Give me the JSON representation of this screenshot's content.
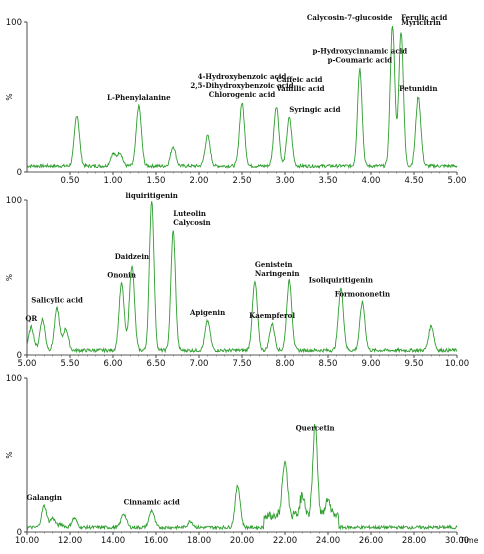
{
  "chart_data": [
    {
      "type": "line",
      "xlim": [
        0.0,
        5.0
      ],
      "ylim": [
        0,
        100
      ],
      "xticks": [
        "0.50",
        "1.00",
        "1.50",
        "2.00",
        "2.50",
        "3.00",
        "3.50",
        "4.00",
        "4.50",
        "5.00"
      ],
      "yticks": [
        "0",
        "100"
      ],
      "ylabel": "%",
      "xlabel": "",
      "line_color": "#2e9e2e",
      "baseline": 4,
      "peaks": [
        {
          "x": 0.58,
          "y": 38
        },
        {
          "x": 1.0,
          "y": 12
        },
        {
          "x": 1.08,
          "y": 13
        },
        {
          "x": 1.3,
          "y": 44
        },
        {
          "x": 1.7,
          "y": 17
        },
        {
          "x": 2.1,
          "y": 24
        },
        {
          "x": 2.5,
          "y": 46
        },
        {
          "x": 2.9,
          "y": 44
        },
        {
          "x": 3.05,
          "y": 36
        },
        {
          "x": 3.87,
          "y": 69
        },
        {
          "x": 4.25,
          "y": 98
        },
        {
          "x": 4.35,
          "y": 94
        },
        {
          "x": 4.55,
          "y": 50
        }
      ],
      "annotations": [
        {
          "text": "L-Phenylalanine",
          "x": 1.3
        },
        {
          "text": "4-Hydroxybenzoic acid",
          "x": 2.5
        },
        {
          "text": "2,5-Dihydroxybenzoic acid",
          "x": 2.5
        },
        {
          "text": "Chlorogenic acid",
          "x": 2.5
        },
        {
          "text": "Caffeic acid",
          "x": 2.9
        },
        {
          "text": "Vanillic acid",
          "x": 2.9
        },
        {
          "text": "Syringic acid",
          "x": 3.05
        },
        {
          "text": "p-Hydroxycinnamic acid",
          "x": 3.87
        },
        {
          "text": "p-Coumaric acid",
          "x": 3.87
        },
        {
          "text": "Calycosin-7-glucoside",
          "x": 4.25
        },
        {
          "text": "Ferulic acid",
          "x": 4.35
        },
        {
          "text": "Myricitrin",
          "x": 4.35
        },
        {
          "text": "Petunidin",
          "x": 4.55
        }
      ]
    },
    {
      "type": "line",
      "xlim": [
        5.0,
        10.0
      ],
      "ylim": [
        0,
        100
      ],
      "xticks": [
        "5.00",
        "5.50",
        "6.00",
        "6.50",
        "7.00",
        "7.50",
        "8.00",
        "8.50",
        "9.00",
        "9.50",
        "10.00"
      ],
      "yticks": [
        "0",
        "100"
      ],
      "ylabel": "%",
      "xlabel": "",
      "line_color": "#2e9e2e",
      "baseline": 3,
      "peaks": [
        {
          "x": 5.05,
          "y": 18
        },
        {
          "x": 5.18,
          "y": 23
        },
        {
          "x": 5.35,
          "y": 30
        },
        {
          "x": 5.45,
          "y": 17
        },
        {
          "x": 6.1,
          "y": 46
        },
        {
          "x": 6.22,
          "y": 58
        },
        {
          "x": 6.45,
          "y": 100
        },
        {
          "x": 6.7,
          "y": 80
        },
        {
          "x": 7.1,
          "y": 22
        },
        {
          "x": 7.65,
          "y": 47
        },
        {
          "x": 7.85,
          "y": 20
        },
        {
          "x": 8.05,
          "y": 48
        },
        {
          "x": 8.65,
          "y": 43
        },
        {
          "x": 8.9,
          "y": 34
        },
        {
          "x": 9.7,
          "y": 19
        }
      ],
      "annotations": [
        {
          "text": "QR",
          "x": 5.05
        },
        {
          "text": "Salicylic acid",
          "x": 5.35
        },
        {
          "text": "Ononin",
          "x": 6.1
        },
        {
          "text": "Daidzein",
          "x": 6.22
        },
        {
          "text": "liquiritigenin",
          "x": 6.45
        },
        {
          "text": "Luteolin",
          "x": 6.7
        },
        {
          "text": "Calycosin",
          "x": 6.7
        },
        {
          "text": "Apigenin",
          "x": 7.1
        },
        {
          "text": "Genistein",
          "x": 7.65
        },
        {
          "text": "Naringenin",
          "x": 7.65
        },
        {
          "text": "Kaempferol",
          "x": 7.85
        },
        {
          "text": "Isoliquiritigenin",
          "x": 8.65
        },
        {
          "text": "Formononetin",
          "x": 8.9
        }
      ]
    },
    {
      "type": "line",
      "xlim": [
        10.0,
        30.0
      ],
      "ylim": [
        0,
        100
      ],
      "xticks": [
        "10.00",
        "12.00",
        "14.00",
        "16.00",
        "18.00",
        "20.00",
        "22.00",
        "24.00",
        "26.00",
        "28.00",
        "30.00"
      ],
      "yticks": [
        "0",
        "100"
      ],
      "ylabel": "%",
      "xlabel": "Time",
      "line_color": "#2e9e2e",
      "baseline": 3,
      "peaks": [
        {
          "x": 10.8,
          "y": 17
        },
        {
          "x": 11.2,
          "y": 9
        },
        {
          "x": 11.6,
          "y": 5
        },
        {
          "x": 12.2,
          "y": 9
        },
        {
          "x": 14.5,
          "y": 12
        },
        {
          "x": 15.8,
          "y": 14
        },
        {
          "x": 17.6,
          "y": 7
        },
        {
          "x": 19.8,
          "y": 30
        },
        {
          "x": 22.0,
          "y": 38
        },
        {
          "x": 22.8,
          "y": 16
        },
        {
          "x": 23.4,
          "y": 62
        },
        {
          "x": 24.0,
          "y": 13
        }
      ],
      "annotations": [
        {
          "text": "Galangin",
          "x": 10.8
        },
        {
          "text": "Cinnamic acid",
          "x": 15.8
        },
        {
          "text": "Quercetin",
          "x": 23.4
        }
      ]
    }
  ]
}
